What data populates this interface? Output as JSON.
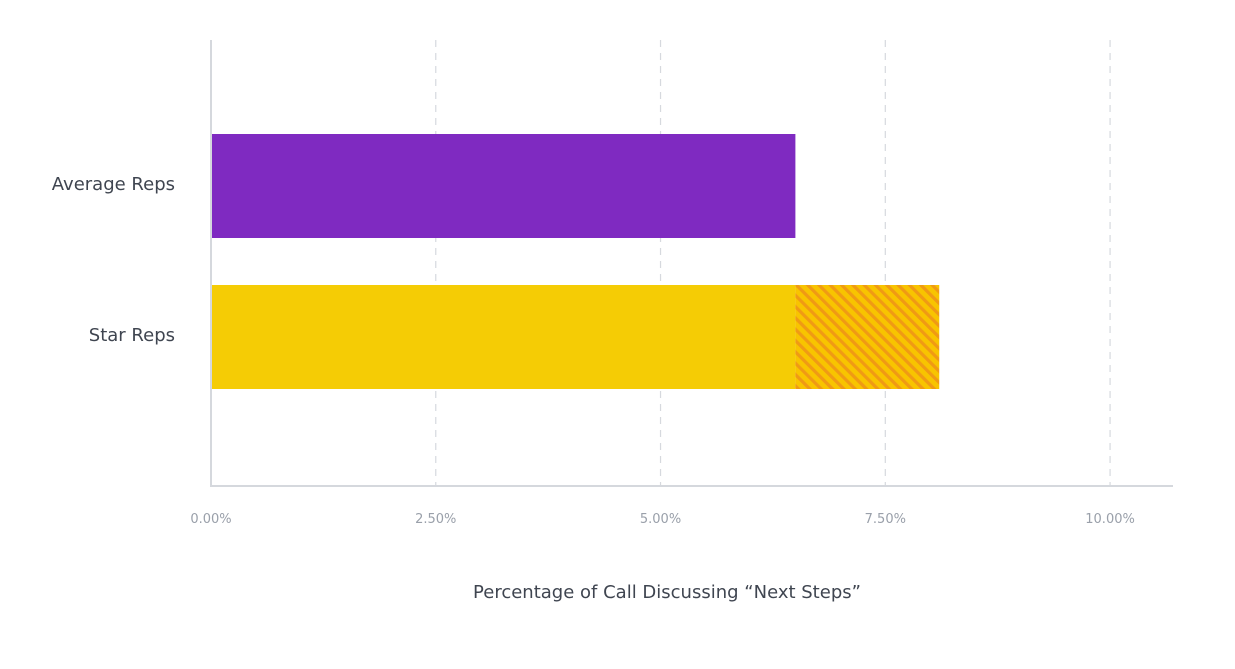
{
  "chart_data": {
    "type": "bar",
    "orientation": "horizontal",
    "categories": [
      "Average Reps",
      "Star Reps"
    ],
    "series": [
      {
        "values": [
          6.5,
          6.5
        ]
      },
      {
        "values": [
          0,
          1.6
        ]
      }
    ],
    "x_ticks": [
      "0.00%",
      "2.50%",
      "5.00%",
      "7.50%",
      "10.00%"
    ],
    "x_tick_values": [
      0,
      2.5,
      5,
      7.5,
      10
    ],
    "xlabel": "Percentage of Call Discussing “Next Steps”",
    "ylabel": "",
    "xlim": [
      0,
      10.7
    ],
    "grid": true,
    "colors": {
      "average": "#7f2ac1",
      "star": "#f5cc05",
      "hatch_bg": "#f8c400",
      "hatch_line": "#f09a14",
      "grid": "#d6d9de",
      "axis": "#d5d8dd"
    }
  }
}
